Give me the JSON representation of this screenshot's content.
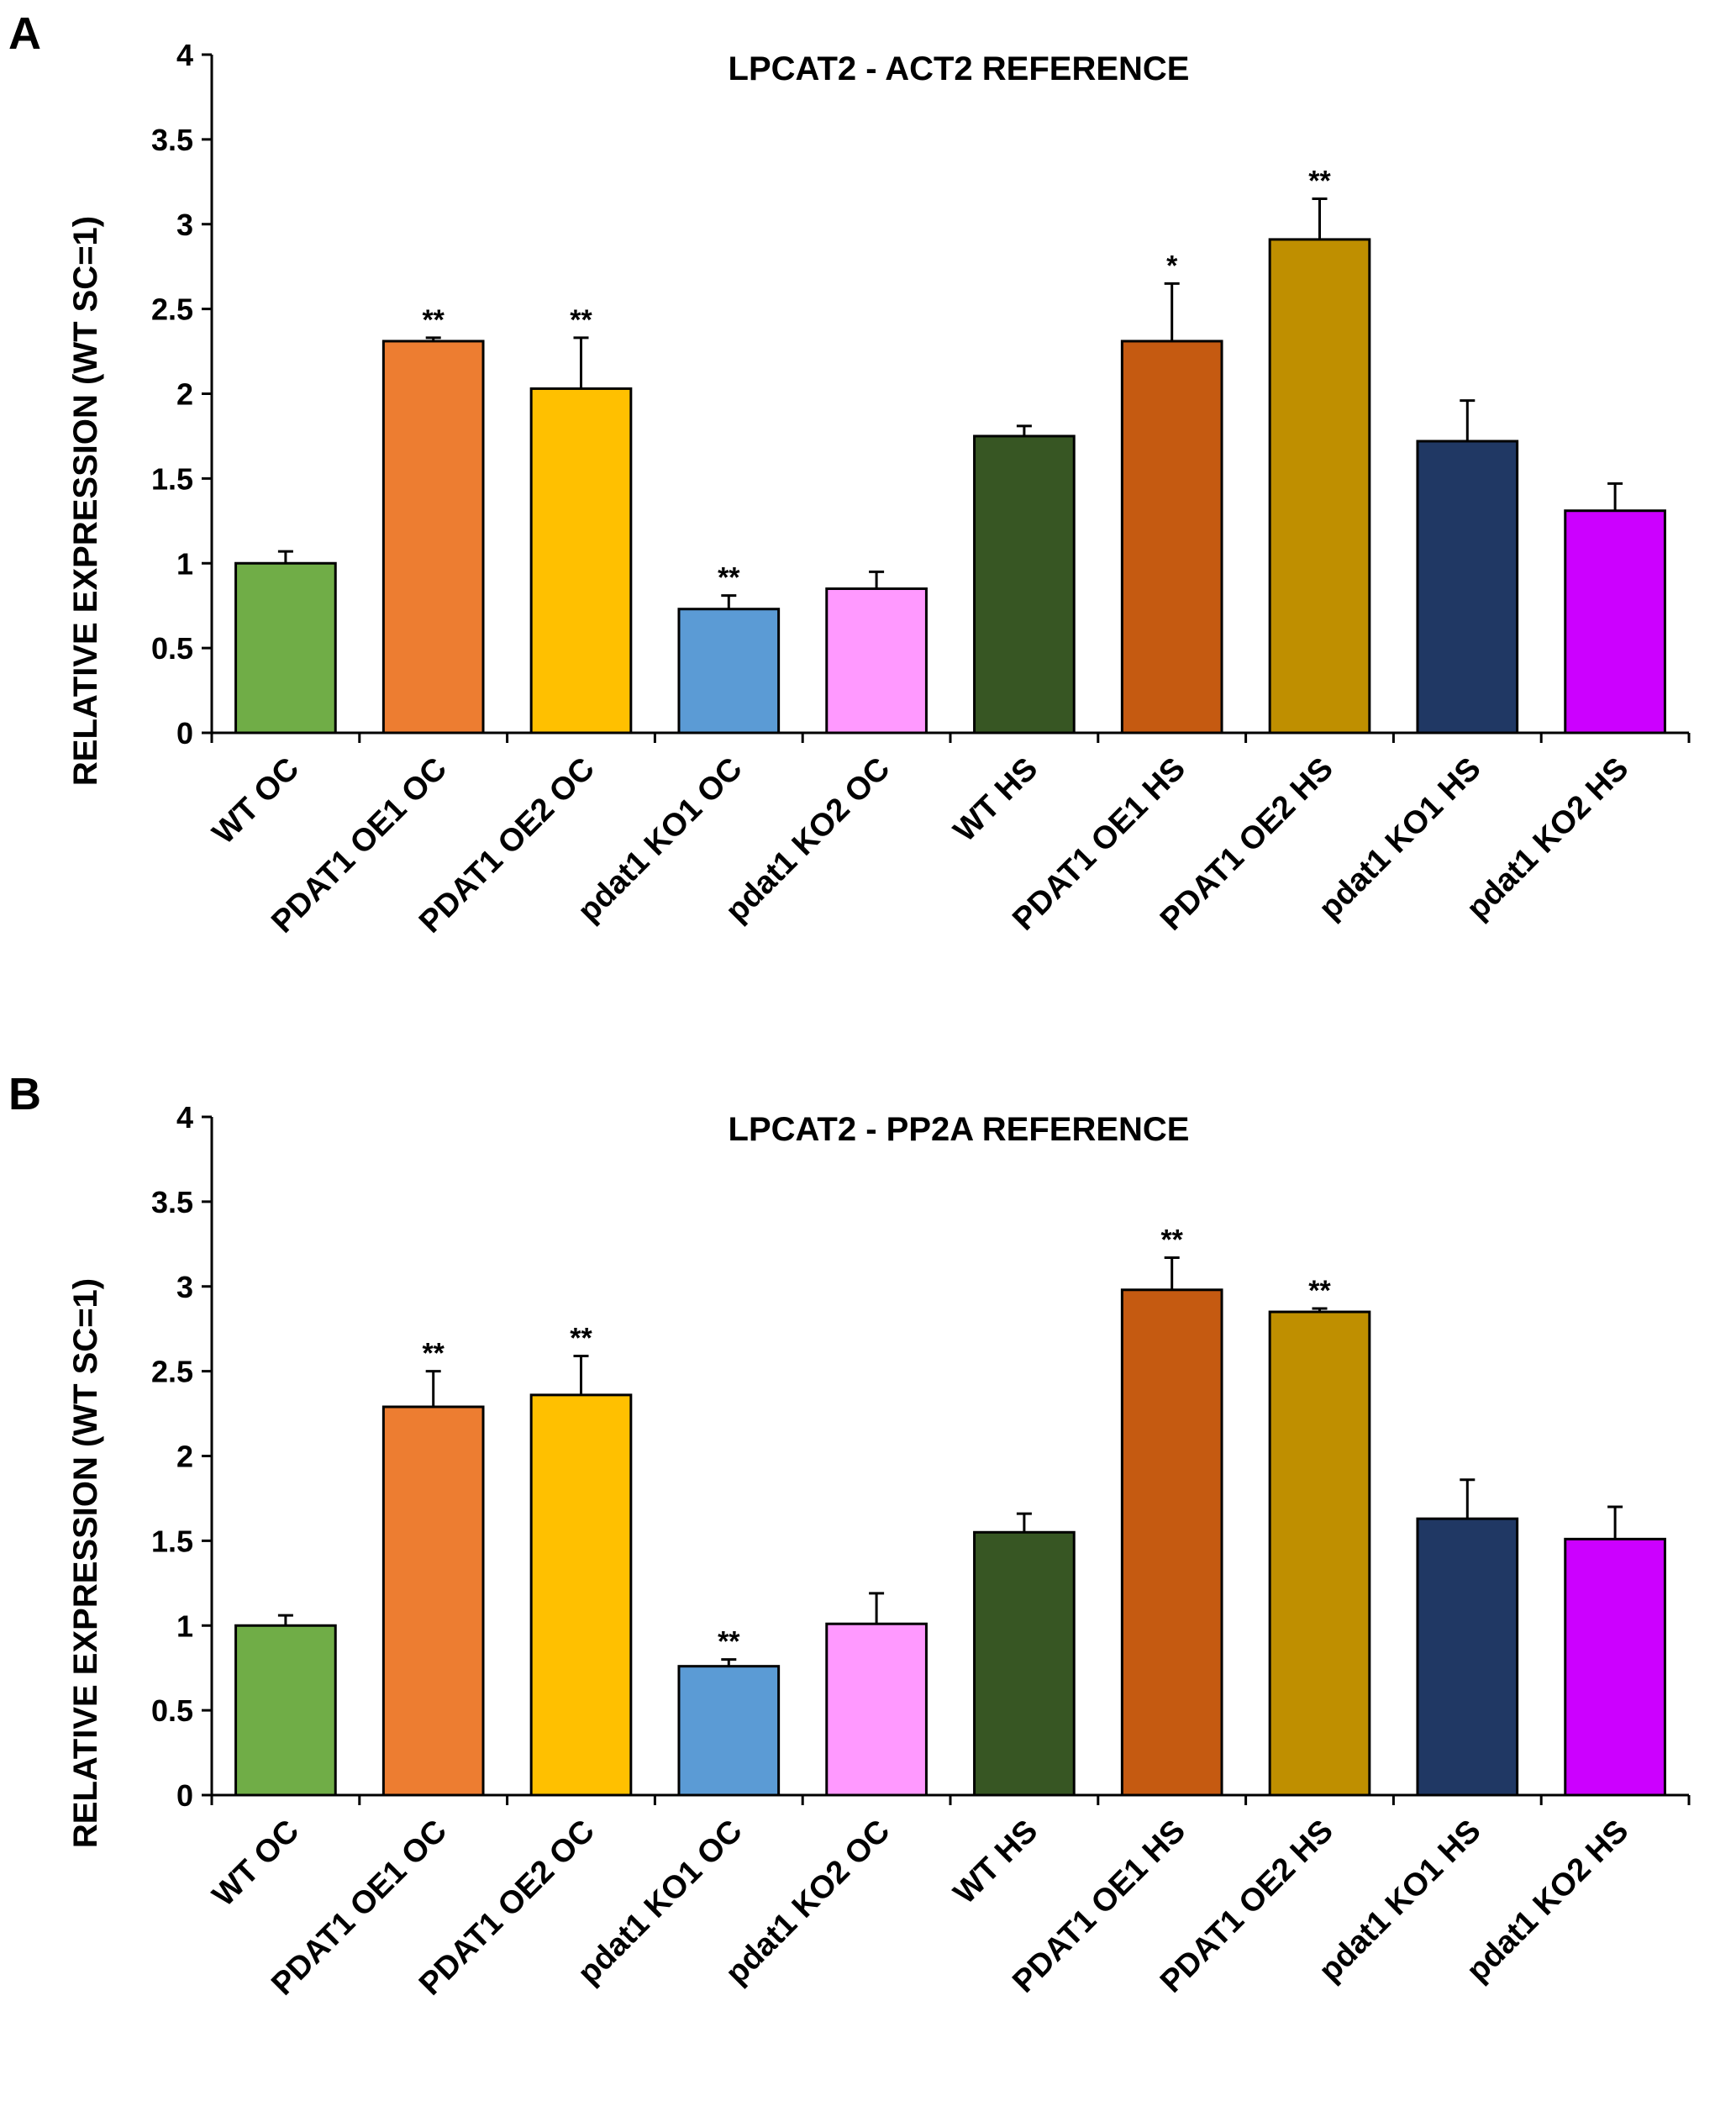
{
  "chart_data": [
    {
      "panel": "A",
      "type": "bar",
      "title": "LPCAT2 - ACT2 REFERENCE",
      "ylabel": "RELATIVE EXPRESSION (WT SC=1)",
      "xlabel": "",
      "ylim": [
        0,
        4
      ],
      "yticks": [
        "0",
        "0.5",
        "1",
        "1.5",
        "2",
        "2.5",
        "3",
        "3.5",
        "4"
      ],
      "grid": false,
      "legend": "none",
      "categories": [
        "WT OC",
        "PDAT1 OE1 OC",
        "PDAT1 OE2 OC",
        "pdat1 KO1 OC",
        "pdat1 KO2 OC",
        "WT HS",
        "PDAT1 OE1 HS",
        "PDAT1 OE2 HS",
        "pdat1 KO1 HS",
        "pdat1 KO2 HS"
      ],
      "values": [
        1.0,
        2.31,
        2.03,
        0.73,
        0.85,
        1.75,
        2.31,
        2.91,
        1.72,
        1.31
      ],
      "errors": [
        0.07,
        0.02,
        0.3,
        0.08,
        0.1,
        0.06,
        0.34,
        0.24,
        0.24,
        0.16
      ],
      "significance": [
        "",
        "**",
        "**",
        "**",
        "",
        "",
        "*",
        "**",
        "",
        ""
      ],
      "colors": [
        "#70ad47",
        "#ed7d31",
        "#ffc000",
        "#5b9bd5",
        "#ff99ff",
        "#375623",
        "#c55a11",
        "#bf8f00",
        "#203864",
        "#cc00ff"
      ]
    },
    {
      "panel": "B",
      "type": "bar",
      "title": "LPCAT2 - PP2A REFERENCE",
      "ylabel": "RELATIVE EXPRESSION (WT SC=1)",
      "xlabel": "",
      "ylim": [
        0,
        4
      ],
      "yticks": [
        "0",
        "0.5",
        "1",
        "1.5",
        "2",
        "2.5",
        "3",
        "3.5",
        "4"
      ],
      "grid": false,
      "legend": "none",
      "categories": [
        "WT OC",
        "PDAT1 OE1 OC",
        "PDAT1 OE2 OC",
        "pdat1 KO1 OC",
        "pdat1 KO2 OC",
        "WT HS",
        "PDAT1 OE1 HS",
        "PDAT1 OE2 HS",
        "pdat1 KO1 HS",
        "pdat1 KO2 HS"
      ],
      "values": [
        1.0,
        2.29,
        2.36,
        0.76,
        1.01,
        1.55,
        2.98,
        2.85,
        1.63,
        1.51
      ],
      "errors": [
        0.06,
        0.21,
        0.23,
        0.04,
        0.18,
        0.11,
        0.19,
        0.02,
        0.23,
        0.19
      ],
      "significance": [
        "",
        "**",
        "**",
        "**",
        "",
        "",
        "**",
        "**",
        "",
        ""
      ],
      "colors": [
        "#70ad47",
        "#ed7d31",
        "#ffc000",
        "#5b9bd5",
        "#ff99ff",
        "#375623",
        "#c55a11",
        "#bf8f00",
        "#203864",
        "#cc00ff"
      ]
    }
  ]
}
